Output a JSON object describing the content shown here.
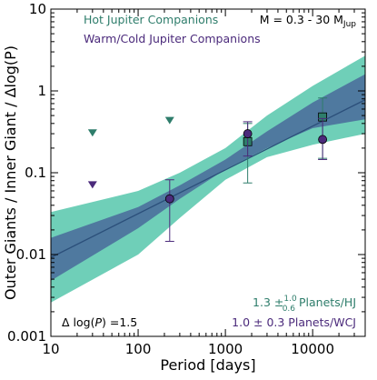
{
  "chart_data": {
    "type": "scatter",
    "xscale": "log",
    "yscale": "log",
    "xlim": [
      10,
      40000
    ],
    "ylim": [
      0.001,
      10
    ],
    "xlabel": "Period [days]",
    "ylabel": "Outer Giants / Inner Giant / Δlog(P)",
    "x_ticks": [
      10,
      100,
      1000,
      10000
    ],
    "x_tick_labels": [
      "10",
      "100",
      "1000",
      "10000"
    ],
    "y_ticks": [
      0.001,
      0.01,
      0.1,
      1,
      10
    ],
    "y_tick_labels": [
      "0.001",
      "0.01",
      "0.1",
      "1",
      "10"
    ],
    "colors": {
      "hj": "#2e7d6b",
      "wcj": "#4b2a7b",
      "outer_band": "#6fcfb8",
      "inner_band": "#4a6a9a",
      "fit_line": "#2b4f7a"
    },
    "legend": {
      "placement": "top-left",
      "entries": [
        {
          "label": "Hot Jupiter Companions",
          "color": "#2e7d6b"
        },
        {
          "label": "Warm/Cold Jupiter Companions",
          "color": "#4b2a7b"
        }
      ]
    },
    "mass_range": {
      "prefix": "M = 0.3 - 30 M",
      "subscript": "Jup"
    },
    "bin_width": {
      "prefix": "Δ log(",
      "var": "P",
      "suffix": ") =1.5"
    },
    "planets_hj": {
      "value": "1.3 ",
      "pm_up": "1.0",
      "pm_down": "0.6",
      "suffix": " Planets/HJ"
    },
    "planets_wcj": {
      "text": "1.0 ± 0.3 Planets/WCJ"
    },
    "fit": {
      "line": [
        [
          10,
          0.0092
        ],
        [
          40000,
          0.78
        ]
      ],
      "inner_band_upper": [
        [
          10,
          0.016
        ],
        [
          100,
          0.038
        ],
        [
          300,
          0.07
        ],
        [
          1000,
          0.145
        ],
        [
          3000,
          0.32
        ],
        [
          10000,
          0.72
        ],
        [
          40000,
          1.6
        ]
      ],
      "inner_band_lower": [
        [
          10,
          0.0048
        ],
        [
          100,
          0.021
        ],
        [
          300,
          0.048
        ],
        [
          1000,
          0.11
        ],
        [
          3000,
          0.2
        ],
        [
          10000,
          0.35
        ],
        [
          40000,
          0.45
        ]
      ],
      "outer_band_upper": [
        [
          10,
          0.033
        ],
        [
          100,
          0.06
        ],
        [
          300,
          0.1
        ],
        [
          1000,
          0.2
        ],
        [
          3000,
          0.5
        ],
        [
          10000,
          1.15
        ],
        [
          40000,
          2.7
        ]
      ],
      "outer_band_lower": [
        [
          10,
          0.0026
        ],
        [
          100,
          0.01
        ],
        [
          300,
          0.028
        ],
        [
          1000,
          0.082
        ],
        [
          3000,
          0.155
        ],
        [
          10000,
          0.22
        ],
        [
          40000,
          0.3
        ]
      ]
    },
    "series": [
      {
        "name": "Hot Jupiter Companions",
        "marker": "square",
        "color": "#2e7d6b",
        "points": [
          {
            "x": 1800,
            "y": 0.24,
            "ylo": 0.075,
            "yhi": 0.4
          },
          {
            "x": 13000,
            "y": 0.48,
            "ylo": 0.15,
            "yhi": 0.82
          }
        ],
        "upper_limits": [
          {
            "x": 30,
            "y": 0.31
          },
          {
            "x": 230,
            "y": 0.44
          }
        ]
      },
      {
        "name": "Warm/Cold Jupiter Companions",
        "marker": "circle",
        "color": "#4b2a7b",
        "points": [
          {
            "x": 230,
            "y": 0.048,
            "ylo": 0.0145,
            "yhi": 0.082
          },
          {
            "x": 1800,
            "y": 0.3,
            "ylo": 0.16,
            "yhi": 0.42
          },
          {
            "x": 13000,
            "y": 0.255,
            "ylo": 0.145,
            "yhi": 0.46
          }
        ],
        "upper_limits": [
          {
            "x": 30,
            "y": 0.072
          }
        ]
      }
    ]
  }
}
